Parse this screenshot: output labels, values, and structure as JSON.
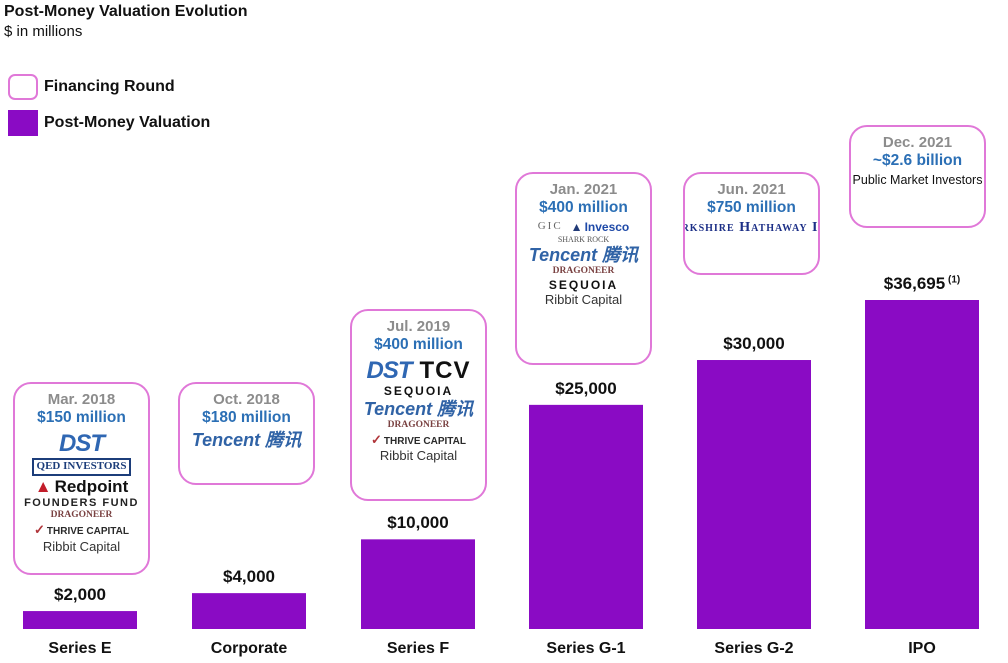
{
  "title": "Post-Money Valuation Evolution",
  "subtitle": "$ in millions",
  "legend": {
    "financing_round": "Financing Round",
    "post_money": "Post-Money Valuation"
  },
  "colors": {
    "bar": "#8a0bc4",
    "round_border": "#e078d8",
    "amount": "#2b6fb5",
    "date": "#8c8c8c"
  },
  "chart_data": {
    "type": "bar",
    "categories": [
      "Series E",
      "Corporate",
      "Series F",
      "Series G-1",
      "Series G-2",
      "IPO"
    ],
    "values": [
      2000,
      4000,
      10000,
      25000,
      30000,
      36695
    ],
    "value_labels": [
      "$2,000",
      "$4,000",
      "$10,000",
      "$25,000",
      "$30,000",
      "$36,695"
    ],
    "value_footnote": {
      "index": 5,
      "text": "(1)"
    },
    "title": "Post-Money Valuation Evolution",
    "ylabel": "$ in millions",
    "ylim": [
      0,
      40000
    ],
    "grid": false,
    "legend_position": "top-left"
  },
  "rounds": [
    {
      "date": "Mar. 2018",
      "amount": "$150 million",
      "logos": [
        {
          "name": "DST",
          "style": "dst"
        },
        {
          "name": "QED INVESTORS",
          "style": "qed"
        },
        {
          "name": "Redpoint",
          "style": "redpoint"
        },
        {
          "name": "FOUNDERS FUND",
          "style": "founders"
        },
        {
          "name": "DRAGONEER",
          "style": "dragon"
        },
        {
          "name": "THRIVE CAPITAL",
          "style": "thrive"
        },
        {
          "name": "Ribbit Capital",
          "style": "ribbit"
        }
      ]
    },
    {
      "date": "Oct. 2018",
      "amount": "$180 million",
      "logos": [
        {
          "name": "Tencent 腾讯",
          "style": "tencent"
        }
      ]
    },
    {
      "date": "Jul. 2019",
      "amount": "$400 million",
      "logos": [
        {
          "name": "DST",
          "style": "dst"
        },
        {
          "name": "TCV",
          "style": "tcv"
        },
        {
          "name": "SEQUOIA",
          "style": "sequoia"
        },
        {
          "name": "Tencent 腾讯",
          "style": "tencent"
        },
        {
          "name": "DRAGONEER",
          "style": "dragon"
        },
        {
          "name": "THRIVE CAPITAL",
          "style": "thrive"
        },
        {
          "name": "Ribbit Capital",
          "style": "ribbit"
        }
      ]
    },
    {
      "date": "Jan. 2021",
      "amount": "$400 million",
      "logos": [
        {
          "name": "GIC",
          "style": "gic"
        },
        {
          "name": "Invesco",
          "style": "invesco"
        },
        {
          "name": "SHARK ROCK",
          "style": "shark"
        },
        {
          "name": "Tencent 腾讯",
          "style": "tencent"
        },
        {
          "name": "DRAGONEER",
          "style": "dragon"
        },
        {
          "name": "SEQUOIA",
          "style": "sequoia"
        },
        {
          "name": "Ribbit Capital",
          "style": "ribbit"
        }
      ]
    },
    {
      "date": "Jun. 2021",
      "amount": "$750 million",
      "logos": [
        {
          "name": "Berkshire Hathaway Inc.",
          "style": "berkshire"
        }
      ]
    },
    {
      "date": "Dec. 2021",
      "amount": "~$2.6 billion",
      "investors": "Public Market Investors",
      "logos": []
    }
  ]
}
